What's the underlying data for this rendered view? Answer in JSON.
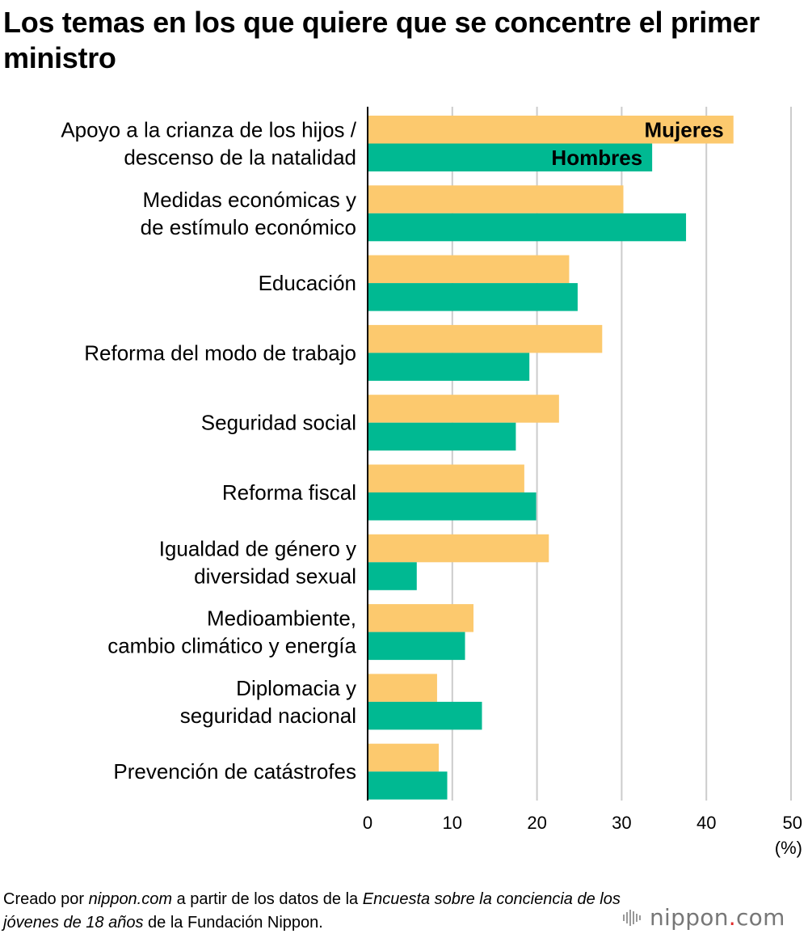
{
  "chart_data": {
    "type": "bar",
    "orientation": "horizontal",
    "title": "Los temas en los que quiere que se concentre el primer ministro",
    "categories": [
      [
        "Apoyo a la crianza de los hijos /",
        "descenso de la natalidad"
      ],
      [
        "Medidas económicas y",
        "de estímulo económico"
      ],
      [
        "Educación"
      ],
      [
        "Reforma del modo de trabajo"
      ],
      [
        "Seguridad social"
      ],
      [
        "Reforma fiscal"
      ],
      [
        "Igualdad de género y",
        "diversidad sexual"
      ],
      [
        "Medioambiente,",
        "cambio climático y energía"
      ],
      [
        "Diplomacia y",
        "seguridad nacional"
      ],
      [
        "Prevención de catástrofes"
      ]
    ],
    "series": [
      {
        "name": "Mujeres",
        "color": "#fcc96e",
        "values": [
          43.2,
          30.2,
          23.8,
          27.7,
          22.6,
          18.5,
          21.4,
          12.5,
          8.2,
          8.4
        ]
      },
      {
        "name": "Hombres",
        "color": "#00b992",
        "values": [
          33.6,
          37.6,
          24.8,
          19.1,
          17.5,
          19.9,
          5.8,
          11.5,
          13.5,
          9.4
        ]
      }
    ],
    "xlim": [
      0,
      50
    ],
    "xticks": [
      "0",
      "10",
      "20",
      "30",
      "40",
      "50"
    ],
    "xunit": "(%)",
    "grid": true,
    "legend": "inside-first-bars"
  },
  "footer": {
    "p1": "Creado por ",
    "p2": "nippon.com",
    "p3": " a partir de los datos de la ",
    "p4": "Encuesta sobre la conciencia de los jóvenes de 18 años",
    "p5": " de la Fundación Nippon."
  },
  "brand": {
    "name": "nippon",
    "dot": ".",
    "tld": "com",
    "icon": "nippon-logo-icon",
    "dot_color": "#e02a2a"
  }
}
